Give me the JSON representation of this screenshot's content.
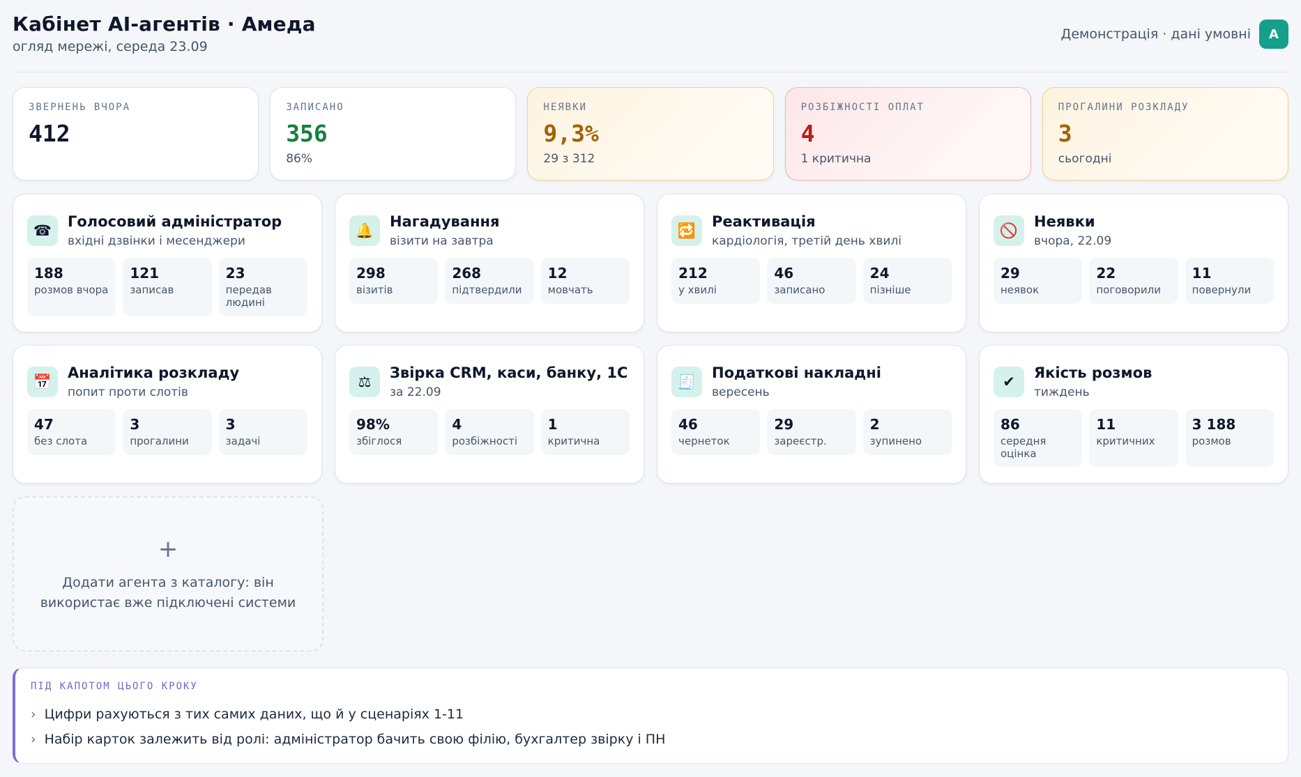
{
  "header": {
    "title": "Кабінет AI-агентів · Амеда",
    "subtitle": "огляд мережі, середа 23.09",
    "demo_note": "Демонстрація · дані умовні",
    "avatar": "A"
  },
  "kpis": [
    {
      "label": "ЗВЕРНЕНЬ ВЧОРА",
      "value": "412",
      "sub": "",
      "tone": "neutral",
      "color": "#0f172a"
    },
    {
      "label": "ЗАПИСАНО",
      "value": "356",
      "sub": "86%",
      "tone": "neutral",
      "color": "#15803d"
    },
    {
      "label": "НЕЯВКИ",
      "value": "9,3%",
      "sub": "29 з 312",
      "tone": "warn",
      "color": "#a16207"
    },
    {
      "label": "РОЗБІЖНОСТІ ОПЛАТ",
      "value": "4",
      "sub": "1 критична",
      "tone": "danger",
      "color": "#b91c1c"
    },
    {
      "label": "ПРОГАЛИНИ РОЗКЛАДУ",
      "value": "3",
      "sub": "сьогодні",
      "tone": "warn",
      "color": "#a16207"
    }
  ],
  "agents": [
    {
      "icon": "☎",
      "icon_name": "phone-icon",
      "title": "Голосовий адміністратор",
      "subtitle": "вхідні дзвінки і месенджери",
      "stats": [
        {
          "value": "188",
          "label": "розмов вчора"
        },
        {
          "value": "121",
          "label": "записав"
        },
        {
          "value": "23",
          "label": "передав людині"
        }
      ]
    },
    {
      "icon": "🔔",
      "icon_name": "bell-icon",
      "title": "Нагадування",
      "subtitle": "візити на завтра",
      "stats": [
        {
          "value": "298",
          "label": "візитів"
        },
        {
          "value": "268",
          "label": "підтвердили"
        },
        {
          "value": "12",
          "label": "мовчать"
        }
      ]
    },
    {
      "icon": "🔁",
      "icon_name": "repeat-icon",
      "title": "Реактивація",
      "subtitle": "кардіологія, третій день хвилі",
      "stats": [
        {
          "value": "212",
          "label": "у хвилі"
        },
        {
          "value": "46",
          "label": "записано"
        },
        {
          "value": "24",
          "label": "пізніше"
        }
      ]
    },
    {
      "icon": "🚫",
      "icon_name": "no-entry-icon",
      "title": "Неявки",
      "subtitle": "вчора, 22.09",
      "stats": [
        {
          "value": "29",
          "label": "неявок"
        },
        {
          "value": "22",
          "label": "поговорили"
        },
        {
          "value": "11",
          "label": "повернули"
        }
      ]
    },
    {
      "icon": "📅",
      "icon_name": "calendar-icon",
      "title": "Аналітика розкладу",
      "subtitle": "попит проти слотів",
      "stats": [
        {
          "value": "47",
          "label": "без слота"
        },
        {
          "value": "3",
          "label": "прогалини"
        },
        {
          "value": "3",
          "label": "задачі"
        }
      ]
    },
    {
      "icon": "⚖",
      "icon_name": "scales-icon",
      "title": "Звірка CRM, каси, банку, 1С",
      "subtitle": "за 22.09",
      "stats": [
        {
          "value": "98%",
          "label": "збіглося"
        },
        {
          "value": "4",
          "label": "розбіжності"
        },
        {
          "value": "1",
          "label": "критична"
        }
      ]
    },
    {
      "icon": "🧾",
      "icon_name": "receipt-icon",
      "title": "Податкові накладні",
      "subtitle": "вересень",
      "stats": [
        {
          "value": "46",
          "label": "чернеток"
        },
        {
          "value": "29",
          "label": "зареєстр."
        },
        {
          "value": "2",
          "label": "зупинено"
        }
      ]
    },
    {
      "icon": "✔",
      "icon_name": "checkmark-icon",
      "title": "Якість розмов",
      "subtitle": "тиждень",
      "stats": [
        {
          "value": "86",
          "label": "середня оцінка"
        },
        {
          "value": "11",
          "label": "критичних"
        },
        {
          "value": "3 188",
          "label": "розмов"
        }
      ]
    }
  ],
  "add_agent": {
    "plus": "+",
    "text": "Додати агента з каталогу: він використає вже підключені системи"
  },
  "notes": {
    "title": "ПІД КАПОТОМ ЦЬОГО КРОКУ",
    "items": [
      "Цифри рахуються з тих самих даних, що й у сценаріях 1-11",
      "Набір карток залежить від ролі: адміністратор бачить свою філію, бухгалтер звірку і ПН"
    ],
    "bullet": "›"
  }
}
